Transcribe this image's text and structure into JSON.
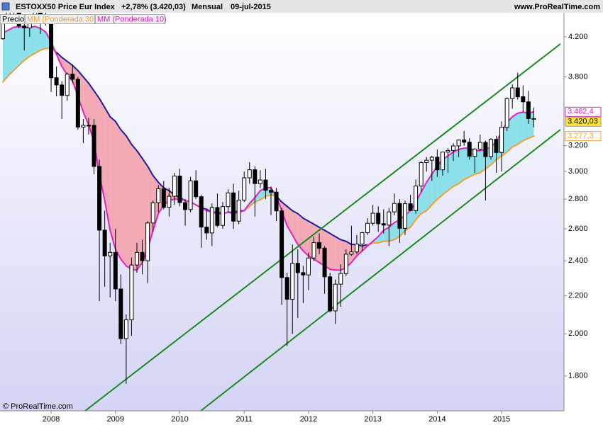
{
  "header": {
    "title": "ESTOXX50 Price Eur Index",
    "change": "+2,78% (3.420,03)",
    "period": "Mensual",
    "date": "09-jul-2015",
    "site": "www.ProRealTime.com"
  },
  "footer": "© ProRealTime.com",
  "chart_data": {
    "type": "candlestick",
    "log": true,
    "grid": false,
    "ylim": [
      1650,
      4460
    ],
    "yticks": [
      {
        "value": 4200,
        "label": "4.200"
      },
      {
        "value": 3800,
        "label": "3.800"
      },
      {
        "value": 3200,
        "label": "3.200"
      },
      {
        "value": 3000,
        "label": "3.000"
      },
      {
        "value": 2800,
        "label": "2.800"
      },
      {
        "value": 2600,
        "label": "2.600"
      },
      {
        "value": 2400,
        "label": "2.400"
      },
      {
        "value": 2200,
        "label": "2.200"
      },
      {
        "value": 2000,
        "label": "2.000"
      },
      {
        "value": 1800,
        "label": "1.800"
      }
    ],
    "categories": [
      null,
      null,
      null,
      null,
      null,
      null,
      null,
      null,
      null,
      "2008",
      null,
      null,
      null,
      null,
      null,
      null,
      null,
      null,
      null,
      null,
      null,
      "2009",
      null,
      null,
      null,
      null,
      null,
      null,
      null,
      null,
      null,
      null,
      null,
      "2010",
      null,
      null,
      null,
      null,
      null,
      null,
      null,
      null,
      null,
      null,
      null,
      "2011",
      null,
      null,
      null,
      null,
      null,
      null,
      null,
      null,
      null,
      null,
      null,
      "2012",
      null,
      null,
      null,
      null,
      null,
      null,
      null,
      null,
      null,
      null,
      null,
      "2013",
      null,
      null,
      null,
      null,
      null,
      null,
      null,
      null,
      null,
      null,
      null,
      "2014",
      null,
      null,
      null,
      null,
      null,
      null,
      null,
      null,
      null,
      null,
      null,
      "2015",
      null,
      null,
      null,
      null,
      null,
      null
    ],
    "fill_above": "#8ce0ea",
    "fill_below": "#f3aab5",
    "series": [
      {
        "name": "Precio",
        "color": "#000000",
        "open": [
          4180,
          4392,
          4512,
          4489,
          4315,
          4294,
          4381,
          4490,
          4364,
          4400,
          3792,
          3724,
          3628,
          3826,
          3777,
          3352,
          3367,
          3366,
          3038,
          2591,
          2430,
          2451,
          2237,
          1976,
          2071,
          2375,
          2451,
          2401,
          2638,
          2775,
          2873,
          2743,
          2820,
          2966,
          2776,
          2728,
          2931,
          2817,
          2611,
          2573,
          2742,
          2622,
          2748,
          2844,
          2650,
          2793,
          2953,
          3013,
          2911,
          2937,
          2862,
          2849,
          2719,
          2302,
          2180,
          2385,
          2330,
          2317,
          2417,
          2512,
          2477,
          2306,
          2118,
          2264,
          2325,
          2440,
          2454,
          2503,
          2575,
          2636,
          2703,
          2633,
          2624,
          2712,
          2770,
          2603,
          2768,
          2721,
          2893,
          3068,
          3086,
          3109,
          3013,
          3149,
          3162,
          3198,
          3245,
          3228,
          3116,
          3173,
          3226,
          3114,
          3251,
          3146,
          3351,
          3599,
          3697,
          3616,
          3570,
          3424
        ],
        "high": [
          4420,
          4530,
          4570,
          4570,
          4370,
          4400,
          4510,
          4500,
          4480,
          4420,
          3900,
          3760,
          3840,
          3920,
          3800,
          3420,
          3430,
          3420,
          3090,
          2720,
          2510,
          2600,
          2320,
          2100,
          2420,
          2510,
          2530,
          2650,
          2790,
          2900,
          2930,
          2880,
          2990,
          3020,
          2800,
          2960,
          3010,
          2830,
          2720,
          2770,
          2840,
          2780,
          2870,
          2910,
          2860,
          3000,
          3070,
          3040,
          3010,
          3020,
          2890,
          2880,
          2740,
          2330,
          2500,
          2470,
          2370,
          2450,
          2550,
          2570,
          2490,
          2330,
          2290,
          2380,
          2470,
          2620,
          2560,
          2580,
          2670,
          2760,
          2750,
          2730,
          2740,
          2840,
          2800,
          2790,
          2830,
          2940,
          3080,
          3110,
          3120,
          3170,
          3150,
          3180,
          3220,
          3250,
          3320,
          3260,
          3180,
          3290,
          3240,
          3260,
          3280,
          3400,
          3610,
          3730,
          3840,
          3720,
          3670,
          3520
        ],
        "low": [
          4170,
          4380,
          4420,
          4290,
          4060,
          4200,
          4340,
          4230,
          4320,
          3660,
          3620,
          3420,
          3580,
          3740,
          3330,
          3220,
          3290,
          2980,
          2170,
          2250,
          2190,
          2170,
          1950,
          1765,
          1990,
          2330,
          2320,
          2270,
          2580,
          2710,
          2730,
          2680,
          2760,
          2750,
          2620,
          2710,
          2800,
          2480,
          2530,
          2490,
          2610,
          2600,
          2710,
          2600,
          2630,
          2780,
          2910,
          2680,
          2880,
          2800,
          2690,
          2650,
          2150,
          1940,
          2000,
          2080,
          2160,
          2230,
          2400,
          2440,
          2210,
          2110,
          2050,
          2140,
          2310,
          2430,
          2440,
          2460,
          2560,
          2620,
          2580,
          2570,
          2490,
          2690,
          2510,
          2560,
          2720,
          2700,
          2850,
          3000,
          2930,
          2960,
          2970,
          2990,
          3080,
          3110,
          3200,
          3090,
          2990,
          3160,
          2790,
          3090,
          2990,
          3000,
          3320,
          3510,
          3590,
          3480,
          3380,
          3350
        ],
        "close": [
          4392,
          4512,
          4489,
          4315,
          4294,
          4381,
          4490,
          4364,
          4400,
          3792,
          3724,
          3628,
          3826,
          3777,
          3352,
          3367,
          3366,
          3038,
          2591,
          2430,
          2451,
          2237,
          1976,
          2071,
          2375,
          2451,
          2401,
          2638,
          2775,
          2873,
          2743,
          2820,
          2966,
          2776,
          2728,
          2931,
          2817,
          2611,
          2573,
          2742,
          2622,
          2748,
          2844,
          2650,
          2793,
          2953,
          3013,
          2911,
          2937,
          2862,
          2849,
          2719,
          2302,
          2180,
          2385,
          2330,
          2317,
          2417,
          2512,
          2477,
          2306,
          2118,
          2264,
          2325,
          2440,
          2454,
          2503,
          2575,
          2636,
          2703,
          2633,
          2624,
          2712,
          2770,
          2603,
          2768,
          2721,
          2893,
          3068,
          3086,
          3109,
          3013,
          3149,
          3162,
          3198,
          3245,
          3228,
          3116,
          3173,
          3226,
          3114,
          3251,
          3146,
          3351,
          3599,
          3697,
          3616,
          3570,
          3424,
          3420.03
        ],
        "value_labels": [
          null,
          null,
          null,
          null,
          null,
          null,
          null,
          null,
          null,
          null,
          null,
          null,
          null,
          null,
          null,
          null,
          null,
          null,
          null,
          null,
          null,
          null,
          null,
          null,
          null,
          null,
          null,
          null,
          null,
          null,
          null,
          null,
          null,
          null,
          null,
          null,
          null,
          null,
          null,
          null,
          null,
          null,
          null,
          null,
          null,
          null,
          null,
          null,
          null,
          null,
          null,
          null,
          null,
          null,
          null,
          null,
          null,
          null,
          null,
          null,
          null,
          null,
          null,
          null,
          null,
          null,
          null,
          null,
          null,
          null,
          null,
          null,
          null,
          null,
          null,
          null,
          null,
          null,
          null,
          null,
          null,
          null,
          null,
          null,
          null,
          null,
          null,
          null,
          null,
          null,
          null,
          null,
          null,
          null,
          null,
          null,
          null,
          null,
          null,
          "3.420,03"
        ]
      },
      {
        "name": "MM (Ponderada 30)",
        "color": "#f0a030",
        "alt_color": "#1c1ca0",
        "values": [
          3750,
          3810,
          3860,
          3910,
          3960,
          4000,
          4030,
          4060,
          4080,
          4080,
          4040,
          3990,
          3950,
          3910,
          3860,
          3800,
          3740,
          3670,
          3600,
          3520,
          3440,
          3400,
          3330,
          3280,
          3210,
          3160,
          3100,
          3040,
          2970,
          2920,
          2880,
          2860,
          2830,
          2810,
          2790,
          2780,
          2760,
          2740,
          2730,
          2710,
          2710,
          2700,
          2710,
          2710,
          2720,
          2720,
          2750,
          2780,
          2795,
          2820,
          2830,
          2820,
          2780,
          2750,
          2720,
          2700,
          2670,
          2650,
          2630,
          2610,
          2590,
          2570,
          2550,
          2530,
          2520,
          2500,
          2500,
          2490,
          2500,
          2510,
          2510,
          2520,
          2520,
          2530,
          2550,
          2590,
          2610,
          2660,
          2700,
          2720,
          2760,
          2800,
          2830,
          2860,
          2890,
          2910,
          2940,
          2960,
          2980,
          2990,
          3020,
          3050,
          3090,
          3120,
          3150,
          3190,
          3210,
          3240,
          3260,
          3277.3
        ],
        "value_labels": [
          null,
          null,
          null,
          null,
          null,
          null,
          null,
          null,
          null,
          null,
          null,
          null,
          null,
          null,
          null,
          null,
          null,
          null,
          null,
          null,
          null,
          null,
          null,
          null,
          null,
          null,
          null,
          null,
          null,
          null,
          null,
          null,
          null,
          null,
          null,
          null,
          null,
          null,
          null,
          null,
          null,
          null,
          null,
          null,
          null,
          null,
          null,
          null,
          null,
          null,
          null,
          null,
          null,
          null,
          null,
          null,
          null,
          null,
          null,
          null,
          null,
          null,
          null,
          null,
          null,
          null,
          null,
          null,
          null,
          null,
          null,
          null,
          null,
          null,
          null,
          null,
          null,
          null,
          null,
          null,
          null,
          null,
          null,
          null,
          null,
          null,
          null,
          null,
          null,
          null,
          null,
          null,
          null,
          null,
          null,
          null,
          null,
          null,
          null,
          "3.277,3"
        ]
      },
      {
        "name": "MM (Ponderada 10)",
        "color": "#e020c0",
        "values": [
          4240,
          4270,
          4300,
          4310,
          4300,
          4300,
          4310,
          4290,
          4250,
          4150,
          4020,
          3900,
          3820,
          3760,
          3620,
          3480,
          3370,
          3230,
          2980,
          2790,
          2590,
          2470,
          2410,
          2370,
          2350,
          2345,
          2390,
          2470,
          2590,
          2700,
          2760,
          2790,
          2800,
          2800,
          2790,
          2780,
          2760,
          2740,
          2720,
          2710,
          2700,
          2700,
          2710,
          2700,
          2710,
          2720,
          2770,
          2810,
          2860,
          2880,
          2880,
          2820,
          2720,
          2620,
          2560,
          2500,
          2460,
          2430,
          2410,
          2390,
          2370,
          2350,
          2345,
          2345,
          2360,
          2390,
          2430,
          2460,
          2490,
          2520,
          2550,
          2590,
          2610,
          2640,
          2660,
          2690,
          2720,
          2780,
          2850,
          2920,
          2980,
          3040,
          3090,
          3120,
          3150,
          3170,
          3180,
          3180,
          3160,
          3160,
          3170,
          3190,
          3230,
          3310,
          3390,
          3440,
          3470,
          3480,
          3470,
          3482.4
        ],
        "value_labels": [
          null,
          null,
          null,
          null,
          null,
          null,
          null,
          null,
          null,
          null,
          null,
          null,
          null,
          null,
          null,
          null,
          null,
          null,
          null,
          null,
          null,
          null,
          null,
          null,
          null,
          null,
          null,
          null,
          null,
          null,
          null,
          null,
          null,
          null,
          null,
          null,
          null,
          null,
          null,
          null,
          null,
          null,
          null,
          null,
          null,
          null,
          null,
          null,
          null,
          null,
          null,
          null,
          null,
          null,
          null,
          null,
          null,
          null,
          null,
          null,
          null,
          null,
          null,
          null,
          null,
          null,
          null,
          null,
          null,
          null,
          null,
          null,
          null,
          null,
          null,
          null,
          null,
          null,
          null,
          null,
          null,
          null,
          null,
          null,
          null,
          null,
          null,
          null,
          null,
          null,
          null,
          null,
          null,
          null,
          null,
          null,
          null,
          null,
          null,
          "3.482,4"
        ]
      }
    ]
  }
}
